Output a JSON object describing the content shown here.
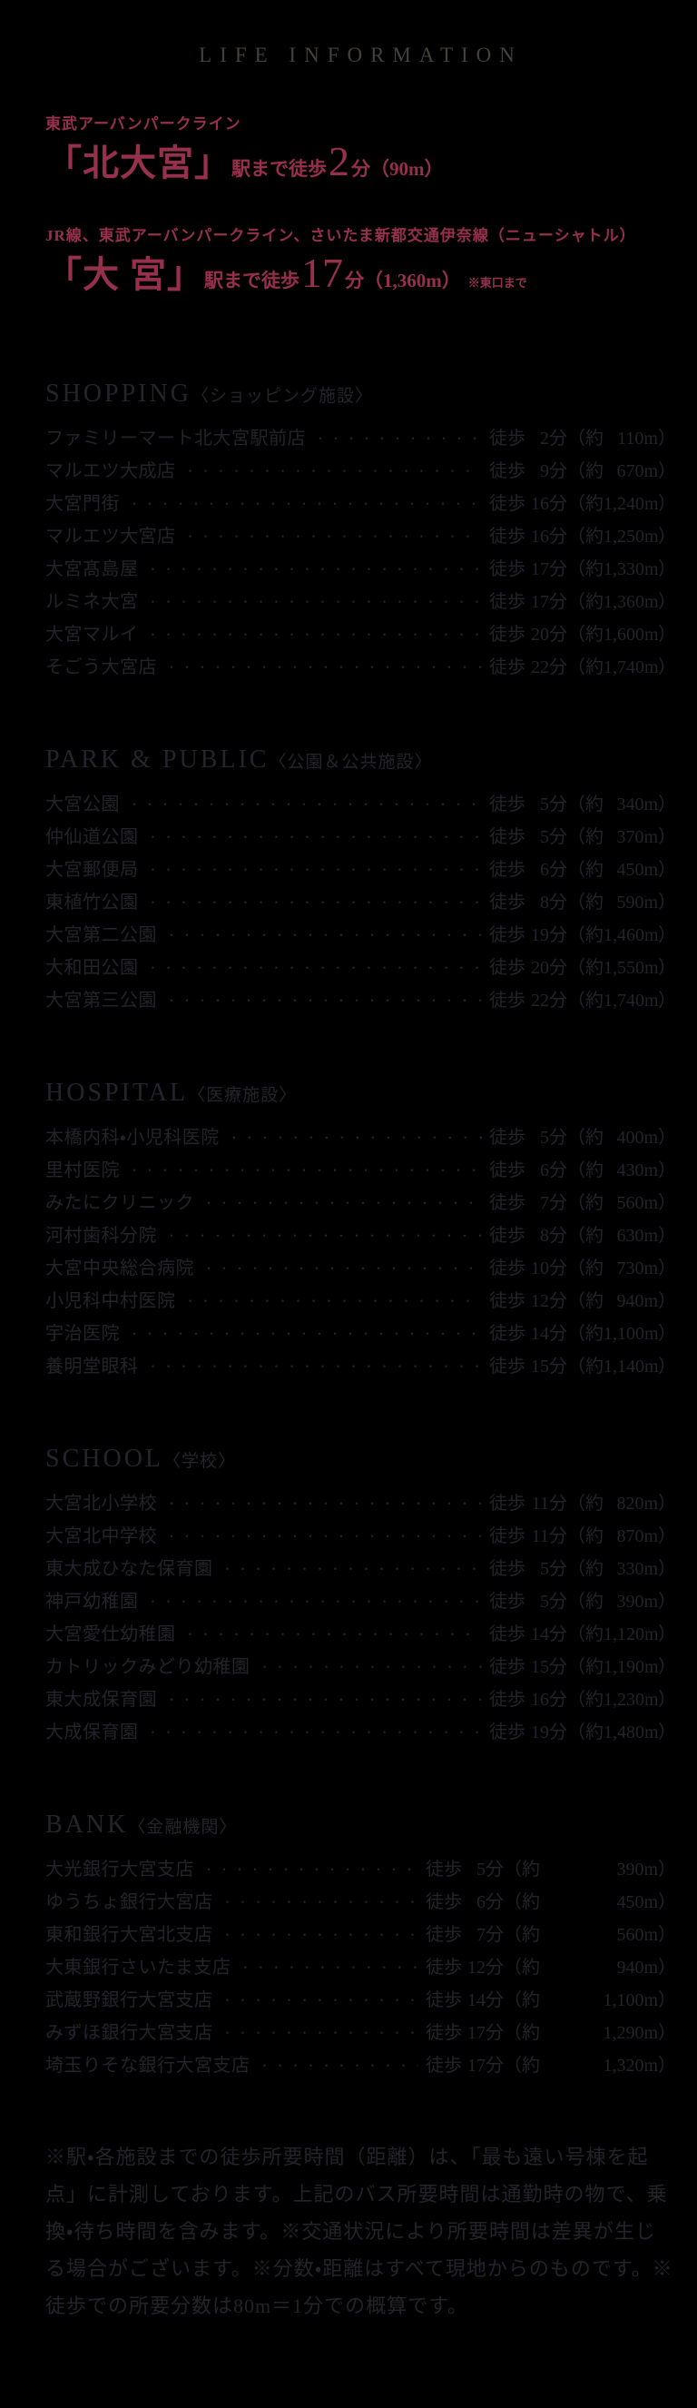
{
  "title": "LIFE INFORMATION",
  "colors": {
    "background": "#000000",
    "accent_red": "#97304d",
    "body_text": "#23232a"
  },
  "access": [
    {
      "line": "東武アーバンパークライン",
      "station": "「北大宮」",
      "mid": "駅まで徒歩",
      "minutes": "2",
      "tail": "分（90m）",
      "note": ""
    },
    {
      "line": "JR線、東武アーバンパークライン、さいたま新都交通伊奈線（ニューシャトル）",
      "station": "「大 宮」",
      "mid": "駅まで徒歩",
      "minutes": "17",
      "tail": "分（1,360m）",
      "note": "※東口まで"
    }
  ],
  "labels": {
    "walk": "徒歩",
    "min_approx": "分（約",
    "close": "）"
  },
  "sections": [
    {
      "en": "SHOPPING",
      "jp": "〈ショッピング施設〉",
      "rows": [
        {
          "name": "ファミリーマート北大宮駅前店",
          "min": "2",
          "dist": "110m"
        },
        {
          "name": "マルエツ大成店",
          "min": "9",
          "dist": "670m"
        },
        {
          "name": "大宮門街",
          "min": "16",
          "dist": "1,240m"
        },
        {
          "name": "マルエツ大宮店",
          "min": "16",
          "dist": "1,250m"
        },
        {
          "name": "大宮髙島屋",
          "min": "17",
          "dist": "1,330m"
        },
        {
          "name": "ルミネ大宮",
          "min": "17",
          "dist": "1,360m"
        },
        {
          "name": "大宮マルイ",
          "min": "20",
          "dist": "1,600m"
        },
        {
          "name": "そごう大宮店",
          "min": "22",
          "dist": "1,740m"
        }
      ]
    },
    {
      "en": "PARK & PUBLIC",
      "jp": "〈公園＆公共施設〉",
      "rows": [
        {
          "name": "大宮公園",
          "min": "5",
          "dist": "340m"
        },
        {
          "name": "仲仙道公園",
          "min": "5",
          "dist": "370m"
        },
        {
          "name": "大宮郵便局",
          "min": "6",
          "dist": "450m"
        },
        {
          "name": "東植竹公園",
          "min": "8",
          "dist": "590m"
        },
        {
          "name": "大宮第二公園",
          "min": "19",
          "dist": "1,460m"
        },
        {
          "name": "大和田公園",
          "min": "20",
          "dist": "1,550m"
        },
        {
          "name": "大宮第三公園",
          "min": "22",
          "dist": "1,740m"
        }
      ]
    },
    {
      "en": "HOSPITAL",
      "jp": "〈医療施設〉",
      "rows": [
        {
          "name": "本橋内科・小児科医院",
          "min": "5",
          "dist": "400m"
        },
        {
          "name": "里村医院",
          "min": "6",
          "dist": "430m"
        },
        {
          "name": "みたにクリニック",
          "min": "7",
          "dist": "560m"
        },
        {
          "name": "河村歯科分院",
          "min": "8",
          "dist": "630m"
        },
        {
          "name": "大宮中央総合病院",
          "min": "10",
          "dist": "730m"
        },
        {
          "name": "小児科中村医院",
          "min": "12",
          "dist": "940m"
        },
        {
          "name": "宇治医院",
          "min": "14",
          "dist": "1,100m"
        },
        {
          "name": "養明堂眼科",
          "min": "15",
          "dist": "1,140m"
        }
      ]
    },
    {
      "en": "SCHOOL",
      "jp": "〈学校〉",
      "rows": [
        {
          "name": "大宮北小学校",
          "min": "11",
          "dist": "820m"
        },
        {
          "name": "大宮北中学校",
          "min": "11",
          "dist": "870m"
        },
        {
          "name": "東大成ひなた保育園",
          "min": "5",
          "dist": "330m"
        },
        {
          "name": "神戸幼稚園",
          "min": "5",
          "dist": "390m"
        },
        {
          "name": "大宮愛仕幼稚園",
          "min": "14",
          "dist": "1,120m"
        },
        {
          "name": "カトリックみどり幼稚園",
          "min": "15",
          "dist": "1,190m"
        },
        {
          "name": "東大成保育園",
          "min": "16",
          "dist": "1,230m"
        },
        {
          "name": "大成保育園",
          "min": "19",
          "dist": "1,480m"
        }
      ]
    },
    {
      "en": "BANK",
      "jp": "〈金融機関〉",
      "dist_col": "wide",
      "rows": [
        {
          "name": "大光銀行大宮支店",
          "min": "5",
          "dist": "390m"
        },
        {
          "name": "ゆうちょ銀行大宮店",
          "min": "6",
          "dist": "450m"
        },
        {
          "name": "東和銀行大宮北支店",
          "min": "7",
          "dist": "560m"
        },
        {
          "name": "大東銀行さいたま支店",
          "min": "12",
          "dist": "940m"
        },
        {
          "name": "武蔵野銀行大宮支店",
          "min": "14",
          "dist": "1,100m"
        },
        {
          "name": "みずほ銀行大宮支店",
          "min": "17",
          "dist": "1,290m"
        },
        {
          "name": "埼玉りそな銀行大宮支店",
          "min": "17",
          "dist": "1,320m"
        }
      ]
    }
  ],
  "footer": "※駅・各施設までの徒歩所要時間（距離）は、「最も遠い号棟を起点」に計測しております。上記のバス所要時間は通勤時の物で、乗換・待ち時間を含みます。※交通状況により所要時間は差異が生じる場合がございます。※分数・距離はすべて現地からのものです。※徒歩での所要分数は80m＝1分での概算です。"
}
